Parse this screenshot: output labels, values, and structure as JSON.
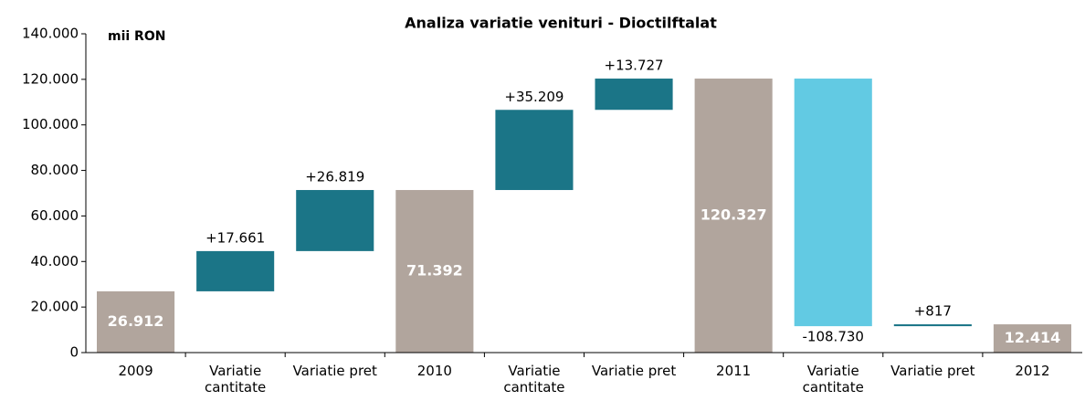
{
  "chart_data": {
    "type": "waterfall",
    "title": "Analiza variatie venituri - Dioctilftalat",
    "y_label": "mii RON",
    "categories": [
      "2009",
      "Variatie cantitate",
      "Variatie pret",
      "2010",
      "Variatie cantitate",
      "Variatie pret",
      "2011",
      "Variatie cantitate",
      "Variatie pret",
      "2012"
    ],
    "values": [
      26912,
      17661,
      26819,
      71392,
      35209,
      13727,
      120327,
      -108730,
      817,
      12414
    ],
    "value_labels": [
      "26.912",
      "+17.661",
      "+26.819",
      "71.392",
      "+35.209",
      "+13.727",
      "120.327",
      "-108.730",
      "+817",
      "12.414"
    ],
    "bar_kinds": [
      "total",
      "increase",
      "increase",
      "total",
      "increase",
      "increase",
      "total",
      "decrease",
      "increase",
      "total"
    ],
    "colors": {
      "total": "#b1a59d",
      "increase": "#1b7587",
      "decrease": "#62cae3"
    },
    "ylim": [
      0,
      140000
    ],
    "yticks": [
      0,
      {
        "value": 20000,
        "label": "20.000"
      },
      {
        "value": 40000,
        "label": "40.000"
      },
      {
        "value": 60000,
        "label": "60.000"
      },
      {
        "value": 80000,
        "label": "80.000"
      },
      {
        "value": 100000,
        "label": "100.000"
      },
      {
        "value": 120000,
        "label": "120.000"
      },
      {
        "value": 140000,
        "label": "140.000"
      }
    ],
    "grid": false
  }
}
